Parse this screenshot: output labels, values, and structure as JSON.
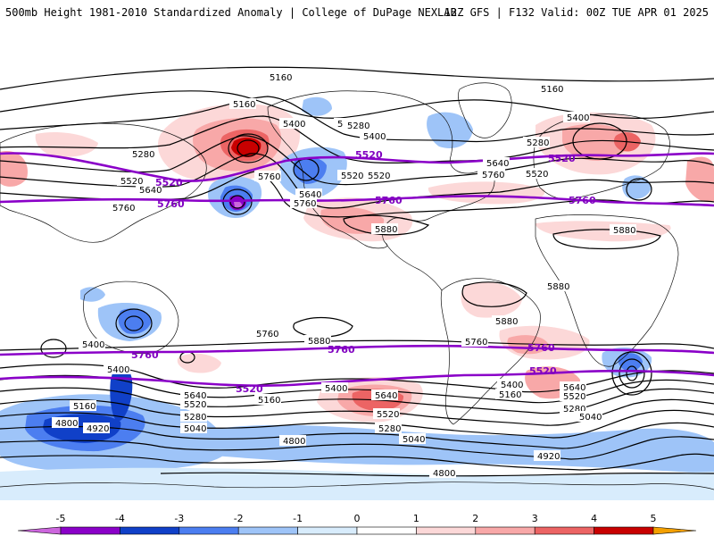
{
  "header": {
    "title": "500mb Height 1981-2010 Standardized Anomaly | College of DuPage NEXLAB",
    "run_info": "12Z GFS | F132 Valid: 00Z TUE APR 01 2025"
  },
  "colors": {
    "ring_5520_5760": "#8a00c8",
    "contour": "#000000",
    "land_outline": "#111111"
  },
  "contour_labels": [
    "5160",
    "5160",
    "5160",
    "5400",
    "5280",
    "5400",
    "5280",
    "5400",
    "5280",
    "5520",
    "5640",
    "5520",
    "5760",
    "5280",
    "5520",
    "5640",
    "5760",
    "5760",
    "5640",
    "5760",
    "5520",
    "5880",
    "5880",
    "5880",
    "5880",
    "5760",
    "5880",
    "5760",
    "5760",
    "5400",
    "5640",
    "5520",
    "5160",
    "5400",
    "5280",
    "5040",
    "4920",
    "4800",
    "4800",
    "5160",
    "5400",
    "5640",
    "5520",
    "5280",
    "5040",
    "5400",
    "5160",
    "5640",
    "5520",
    "5280",
    "5040",
    "4920",
    "4800"
  ],
  "purple_labels": [
    "5520",
    "5760",
    "5520",
    "5760",
    "5760",
    "5520",
    "5760",
    "5760",
    "5520",
    "5760",
    "5520"
  ],
  "colorbar": {
    "ticks": [
      "-5",
      "-4",
      "-3",
      "-2",
      "-1",
      "0",
      "1",
      "2",
      "3",
      "4",
      "5"
    ],
    "colors": [
      "#cc66dd",
      "#8a00c8",
      "#1040c8",
      "#4c7ef0",
      "#9ec4f8",
      "#d8ecfc",
      "#ffffff",
      "#fcd8d8",
      "#f8a8a8",
      "#ec6464",
      "#c80000",
      "#f4a000"
    ]
  }
}
